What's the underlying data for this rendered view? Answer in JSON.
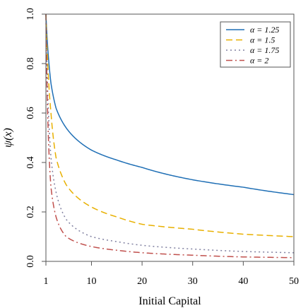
{
  "chart_data": {
    "type": "line",
    "xlabel": "Initial Capital",
    "ylabel": "ψ(x)",
    "xlim": [
      1,
      50
    ],
    "ylim": [
      0,
      1
    ],
    "x_ticks": [
      "1",
      "10",
      "20",
      "30",
      "40",
      "50"
    ],
    "y_ticks": [
      "0.0",
      "0.2",
      "0.4",
      "0.6",
      "0.8",
      "1.0"
    ],
    "legend_position": "top-right",
    "series": [
      {
        "name": "α = 1.25",
        "color": "#1f6fb5",
        "dash": "solid",
        "tail_index": 1.25,
        "x": [
          1,
          2,
          3,
          5,
          10,
          15,
          20,
          30,
          40,
          50
        ],
        "y": [
          1.0,
          0.72,
          0.62,
          0.54,
          0.45,
          0.41,
          0.38,
          0.33,
          0.3,
          0.27
        ]
      },
      {
        "name": "α = 1.5",
        "color": "#e8b000",
        "dash": "dashed",
        "tail_index": 1.5,
        "x": [
          1,
          2,
          3,
          5,
          10,
          15,
          20,
          30,
          40,
          50
        ],
        "y": [
          1.0,
          0.6,
          0.42,
          0.31,
          0.22,
          0.18,
          0.15,
          0.13,
          0.11,
          0.1
        ]
      },
      {
        "name": "α = 1.75",
        "color": "#8080a0",
        "dash": "dotted",
        "tail_index": 1.75,
        "x": [
          1,
          2,
          3,
          5,
          10,
          15,
          20,
          30,
          40,
          50
        ],
        "y": [
          1.0,
          0.42,
          0.28,
          0.17,
          0.1,
          0.08,
          0.065,
          0.05,
          0.04,
          0.035
        ]
      },
      {
        "name": "α = 2",
        "color": "#c0504d",
        "dash": "dashdot",
        "tail_index": 2,
        "x": [
          1,
          2,
          3,
          5,
          10,
          15,
          20,
          30,
          40,
          50
        ],
        "y": [
          1.0,
          0.3,
          0.18,
          0.1,
          0.06,
          0.045,
          0.035,
          0.025,
          0.018,
          0.015
        ]
      }
    ]
  }
}
